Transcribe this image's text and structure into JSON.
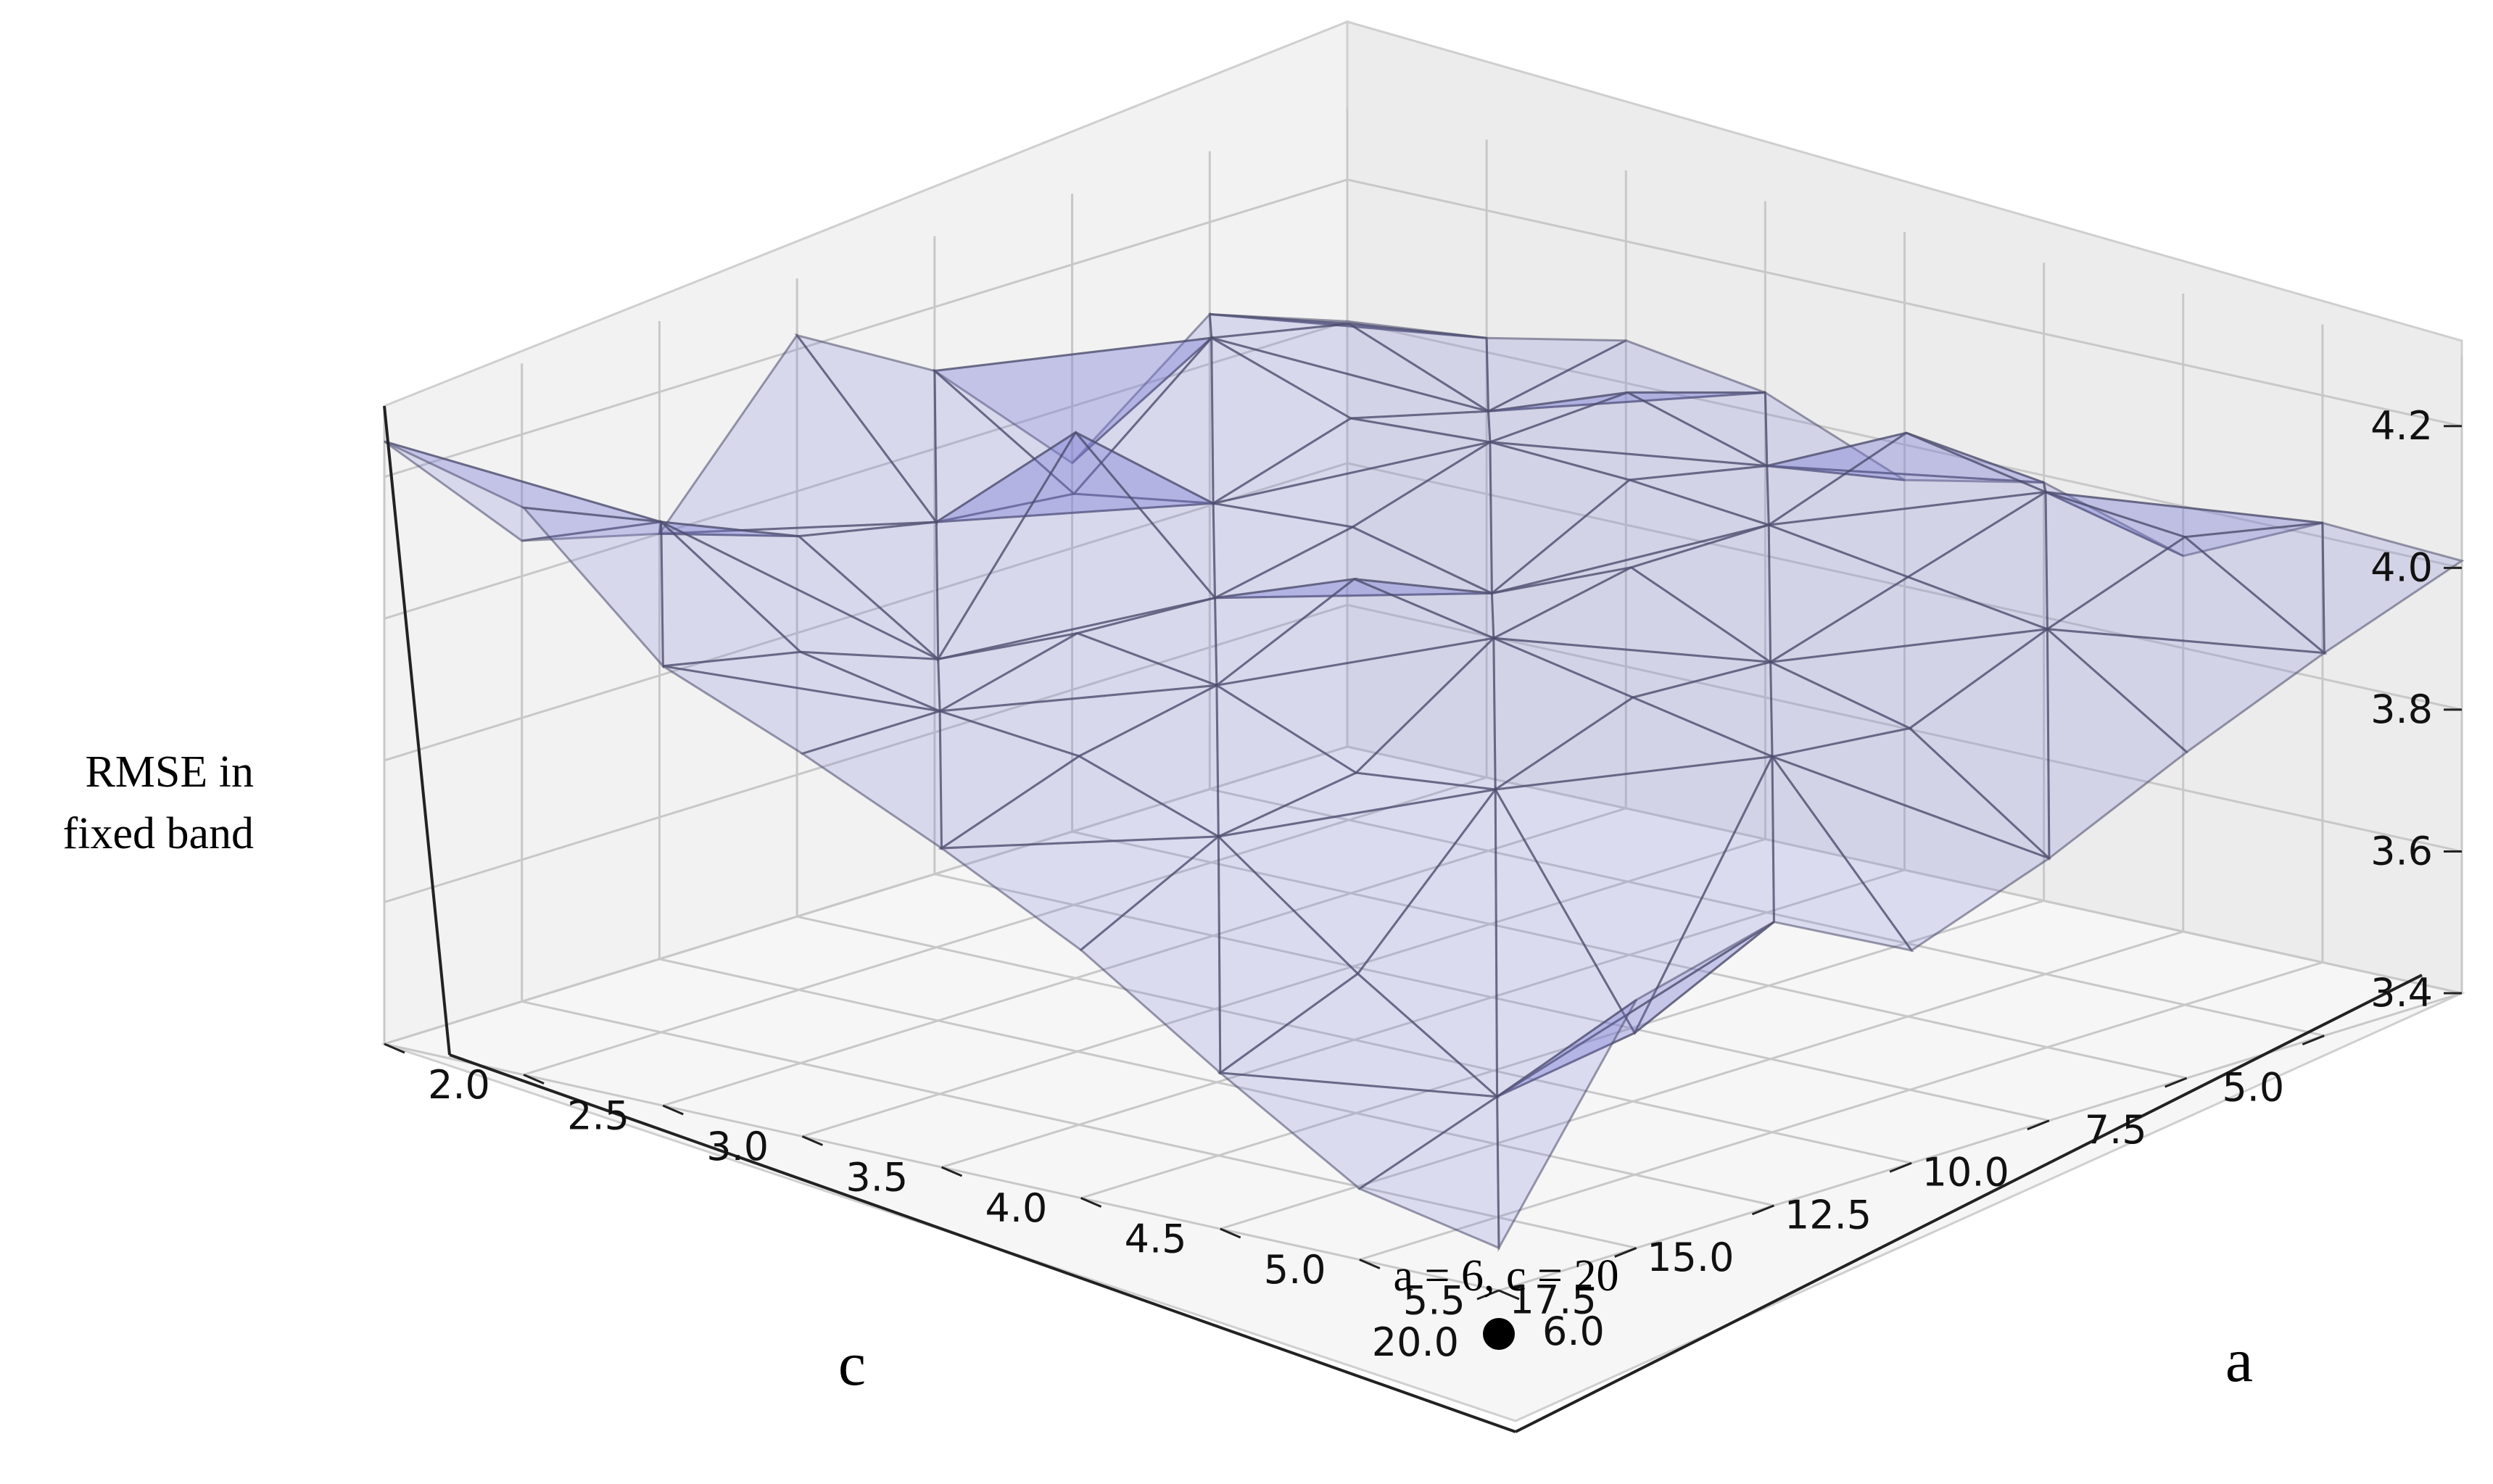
{
  "chart_data": {
    "type": "surface3d",
    "a_values": [
      2.0,
      2.5,
      3.0,
      3.5,
      4.0,
      4.5,
      5.0,
      5.5,
      6.0
    ],
    "c_values": [
      2.5,
      5.0,
      7.5,
      10.0,
      12.5,
      15.0,
      17.5,
      20.0
    ],
    "rmse": [
      [
        4.0,
        4.02,
        4.06,
        4.03,
        3.95,
        3.99,
        3.93,
        4.02,
        4.01
      ],
      [
        4.07,
        4.1,
        4.02,
        4.09,
        4.03,
        4.12,
        4.08,
        4.06,
        3.94
      ],
      [
        3.92,
        4.14,
        4.07,
        4.08,
        4.07,
        4.05,
        4.02,
        3.99,
        3.86
      ],
      [
        4.11,
        3.98,
        4.01,
        4.02,
        3.97,
        4.05,
        3.96,
        3.91,
        3.77
      ],
      [
        4.22,
        4.0,
        4.17,
        3.98,
        4.05,
        4.01,
        3.97,
        3.93,
        3.7
      ],
      [
        4.0,
        4.04,
        3.91,
        3.99,
        3.96,
        3.88,
        3.9,
        3.6,
        3.8
      ],
      [
        4.05,
        4.12,
        3.98,
        3.94,
        3.92,
        3.85,
        3.7,
        3.57,
        3.75
      ],
      [
        4.25,
        4.2,
        4.02,
        3.94,
        3.85,
        3.75,
        3.62,
        3.5,
        3.46
      ]
    ],
    "a_ticks": [
      "2.0",
      "2.5",
      "3.0",
      "3.5",
      "4.0",
      "4.5",
      "5.0",
      "5.5",
      "6.0"
    ],
    "c_ticks": [
      "5.0",
      "7.5",
      "10.0",
      "12.5",
      "15.0",
      "17.5",
      "20.0"
    ],
    "z_ticks": [
      "3.4",
      "3.6",
      "3.8",
      "4.0",
      "4.2"
    ],
    "zlim": [
      3.4,
      4.3
    ],
    "xlabel": "c",
    "ylabel": "a",
    "zlabel_lines": [
      "RMSE in",
      "fixed band"
    ],
    "annotation": {
      "text": "a = 6, c = 20",
      "a": 6.0,
      "c": 20.0
    },
    "grid": true,
    "surface_color": "#7b7bd6",
    "edge_color": "#4a4a6a",
    "marker_color": "#000000"
  }
}
